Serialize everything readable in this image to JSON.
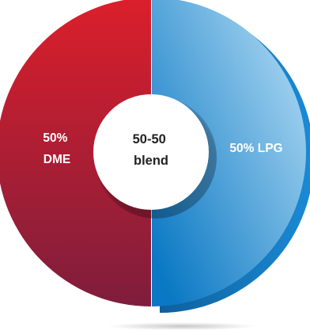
{
  "chart_data": {
    "type": "pie",
    "style": "donut",
    "slices": [
      {
        "label_lines": [
          "50%",
          "DME"
        ],
        "value": 50,
        "color_top": "#dc1f2b",
        "color_bottom": "#7e1d3c"
      },
      {
        "label_lines": [
          "50% LPG"
        ],
        "value": 50,
        "color_top": "#aed9f3",
        "color_bottom": "#0a78c4"
      }
    ],
    "center_label": [
      "50-50",
      "blend"
    ],
    "lpg_slice_exploded": true
  }
}
